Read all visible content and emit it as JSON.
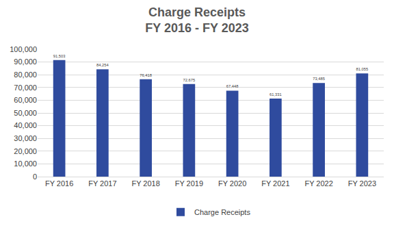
{
  "chart_data": {
    "type": "bar",
    "title": "Charge Receipts",
    "subtitle": "FY 2016 - FY 2023",
    "categories": [
      "FY 2016",
      "FY 2017",
      "FY 2018",
      "FY 2019",
      "FY 2020",
      "FY 2021",
      "FY 2022",
      "FY 2023"
    ],
    "series": [
      {
        "name": "Charge Receipts",
        "color": "#2f4b9e",
        "values": [
          91503,
          84254,
          76418,
          72675,
          67448,
          61331,
          73485,
          81055
        ],
        "value_labels": [
          "91,503",
          "84,254",
          "76,418",
          "72,675",
          "67,448",
          "61,331",
          "73,485",
          "81,055"
        ]
      }
    ],
    "ylim": [
      0,
      100000
    ],
    "yticks": [
      0,
      {
        "value": 10000,
        "label": "10,000"
      },
      {
        "value": 20000,
        "label": "20,000"
      },
      {
        "value": 30000,
        "label": "30,000"
      },
      {
        "value": 40000,
        "label": "40,000"
      },
      {
        "value": 50000,
        "label": "50,000"
      },
      {
        "value": 60000,
        "label": "60,000"
      },
      {
        "value": 70000,
        "label": "70,000"
      },
      {
        "value": 80000,
        "label": "80,000"
      },
      {
        "value": 90000,
        "label": "90,000"
      },
      {
        "value": 100000,
        "label": "100,000"
      }
    ],
    "grid": true,
    "data_labels": true,
    "legend": "bottom"
  }
}
